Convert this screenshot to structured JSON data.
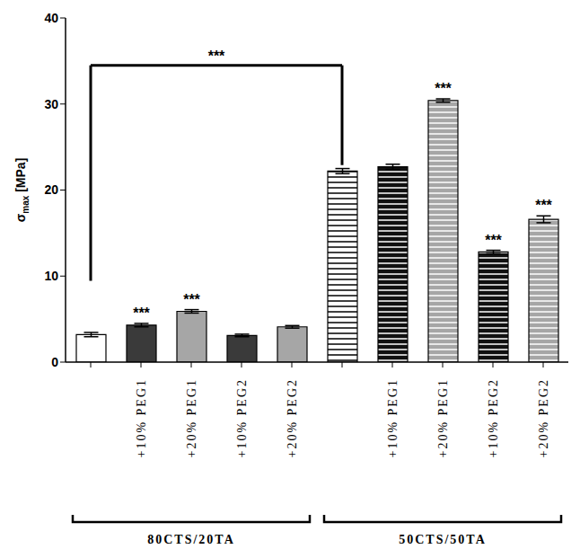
{
  "chart_data": {
    "type": "bar",
    "ylabel": {
      "text": "σ",
      "subscript": "max",
      "unit": "[MPa]"
    },
    "categories": [
      null,
      "+10% PEG1",
      "+20% PEG1",
      "+10% PEG2",
      "+20% PEG2",
      null,
      "+10% PEG1",
      "+20% PEG1",
      "+10% PEG2",
      "+20% PEG2"
    ],
    "values": [
      3.2,
      4.3,
      5.9,
      3.1,
      4.1,
      22.2,
      22.7,
      30.4,
      12.8,
      16.6
    ],
    "errors": [
      0.25,
      0.2,
      0.2,
      0.15,
      0.15,
      0.3,
      0.3,
      0.2,
      0.2,
      0.4
    ],
    "colors": [
      "#ffffff",
      "#3a3a3a",
      "#a6a6a6",
      "#3a3a3a",
      "#a6a6a6",
      "#ffffff",
      "#111111",
      "#a6a6a6",
      "#111111",
      "#a6a6a6"
    ],
    "ylim": [
      0,
      40
    ],
    "yticks": [
      0,
      10,
      20,
      30,
      40
    ],
    "grid": false,
    "groups": [
      {
        "label": "80CTS/20TA",
        "start": 0,
        "end": 4
      },
      {
        "label": "50CTS/50TA",
        "start": 5,
        "end": 9
      }
    ],
    "annotations": [
      {
        "text": "***",
        "index": 1
      },
      {
        "text": "***",
        "index": 2
      },
      {
        "text": "***",
        "index": 7
      },
      {
        "text": "***",
        "index": 8
      },
      {
        "text": "***",
        "index": 9
      }
    ],
    "comparisons": [
      {
        "text": "***",
        "from": 0,
        "to": 5
      }
    ]
  }
}
